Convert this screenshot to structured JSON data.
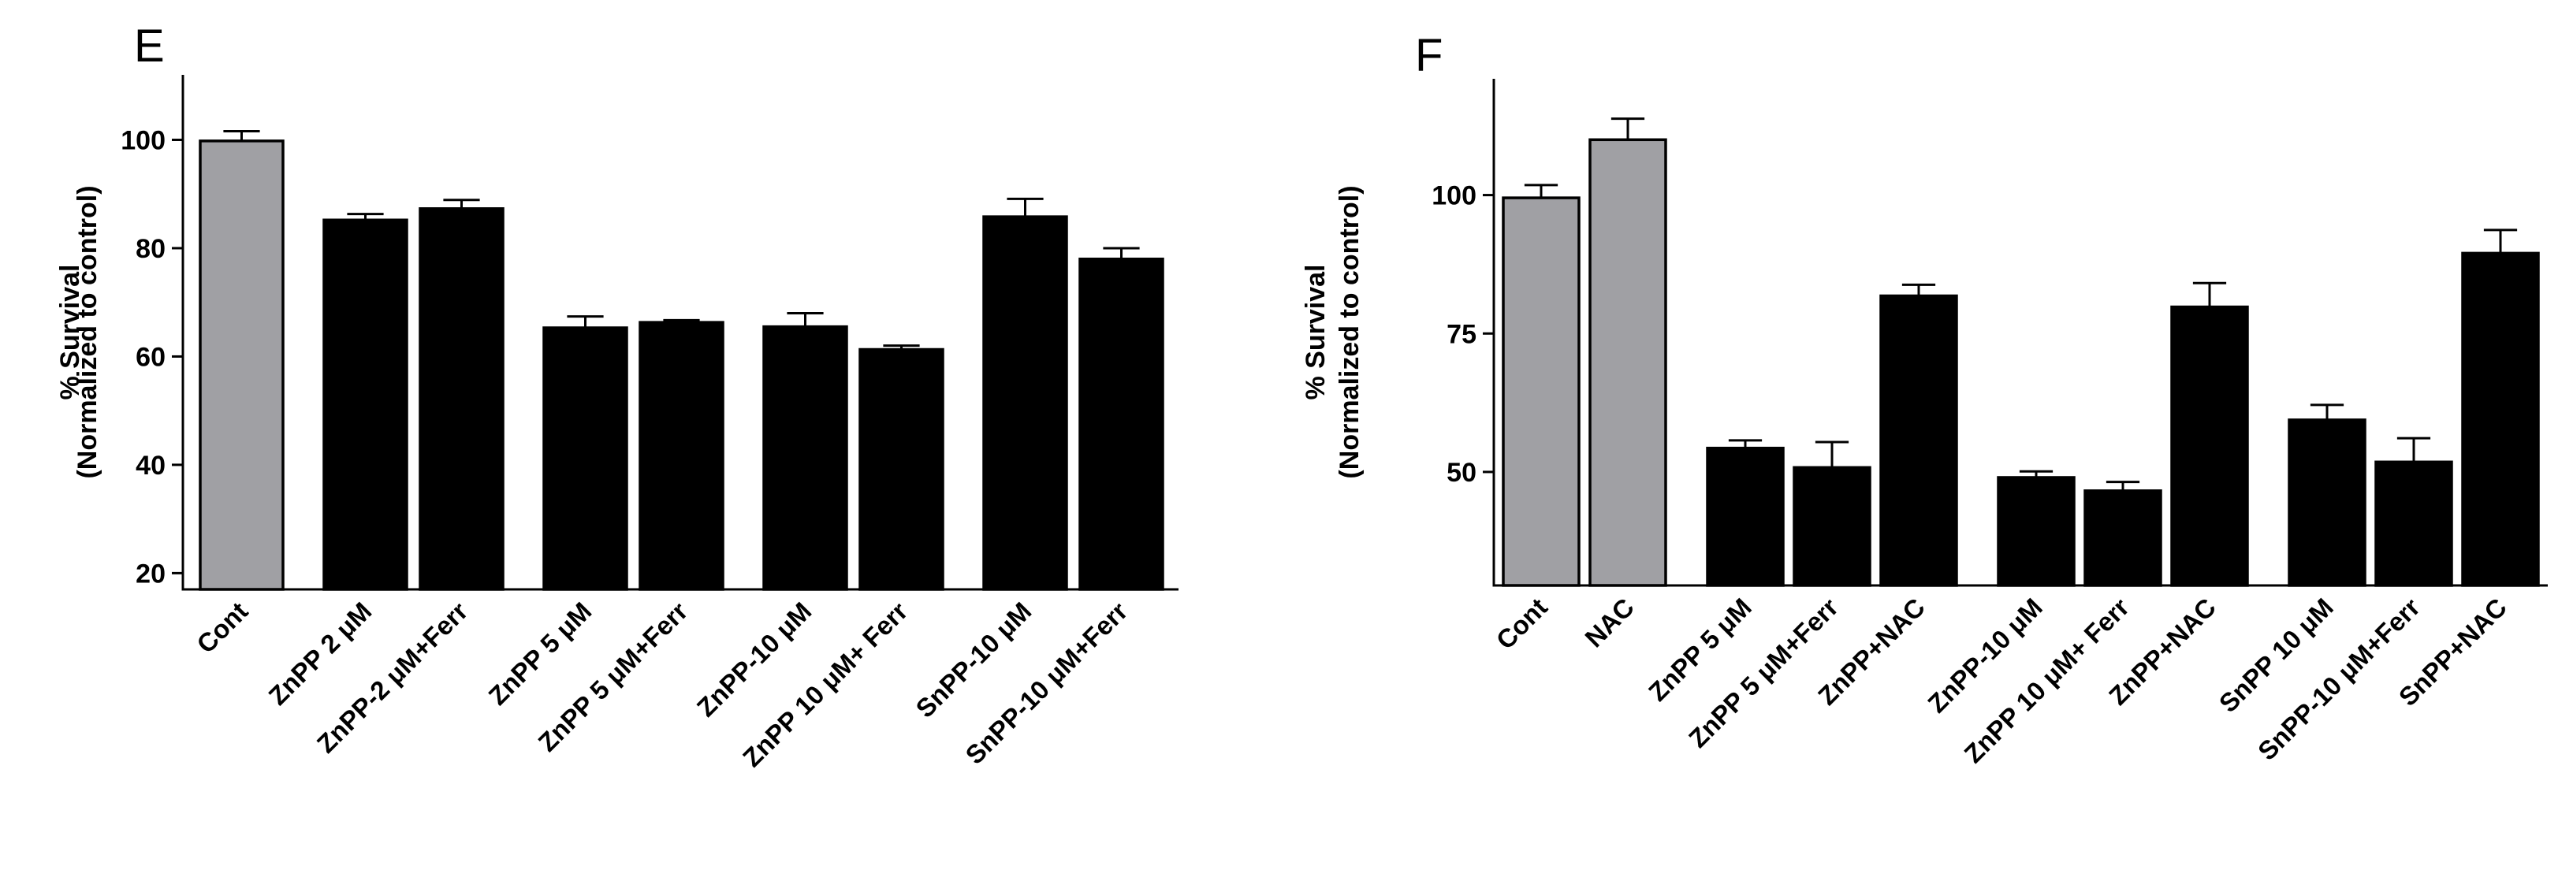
{
  "chart_data": [
    {
      "type": "bar",
      "panel_label": "E",
      "ylabel_lines": [
        "% Survival",
        "(Normalized to control)"
      ],
      "ylim": [
        17,
        112
      ],
      "yticks": [
        20,
        40,
        60,
        80,
        100
      ],
      "categories": [
        "Cont",
        "ZnPP 2 μM",
        "ZnPP-2 μM+Ferr",
        "ZnPP 5 μM",
        "ZnPP 5 μM+Ferr",
        "ZnPP-10 μM",
        "ZnPP 10 μM+ Ferr",
        "SnPP-10 μM",
        "SnPP-10 μM+Ferr"
      ],
      "groups": [
        1,
        2,
        2,
        2,
        2
      ],
      "values": [
        99.8,
        85.2,
        87.3,
        65.3,
        66.3,
        65.5,
        61.3,
        85.8,
        78.0
      ],
      "errors": [
        1.8,
        1.1,
        1.6,
        2.1,
        0.4,
        2.5,
        0.7,
        3.3,
        2.0
      ],
      "colors": [
        "#a0a0a4",
        "#000000",
        "#000000",
        "#000000",
        "#000000",
        "#000000",
        "#000000",
        "#000000",
        "#000000"
      ],
      "grid": false,
      "legend": "none"
    },
    {
      "type": "bar",
      "panel_label": "F",
      "ylabel_lines": [
        "% Survival",
        "(Normalized to control)"
      ],
      "ylim": [
        29.5,
        121
      ],
      "yticks": [
        50,
        75,
        100
      ],
      "categories": [
        "Cont",
        "NAC",
        "ZnPP 5 μM",
        "ZnPP 5 μM+Ferr",
        "ZnPP+NAC",
        "ZnPP-10 μM",
        "ZnPP 10 μM+ Ferr",
        "ZnPP+NAC",
        "SnPP 10 μM",
        "SnPP-10 μM+Ferr",
        "SnPP+NAC"
      ],
      "groups": [
        2,
        3,
        3,
        3
      ],
      "values": [
        99.5,
        110.0,
        54.3,
        50.8,
        81.8,
        49.0,
        46.6,
        79.8,
        59.4,
        51.8,
        89.5
      ],
      "errors": [
        2.3,
        3.8,
        1.4,
        4.6,
        2.0,
        1.1,
        1.6,
        4.3,
        2.7,
        4.3,
        4.2
      ],
      "colors": [
        "#a0a0a4",
        "#a0a0a4",
        "#000000",
        "#000000",
        "#000000",
        "#000000",
        "#000000",
        "#000000",
        "#000000",
        "#000000",
        "#000000"
      ],
      "grid": false,
      "legend": "none"
    }
  ]
}
